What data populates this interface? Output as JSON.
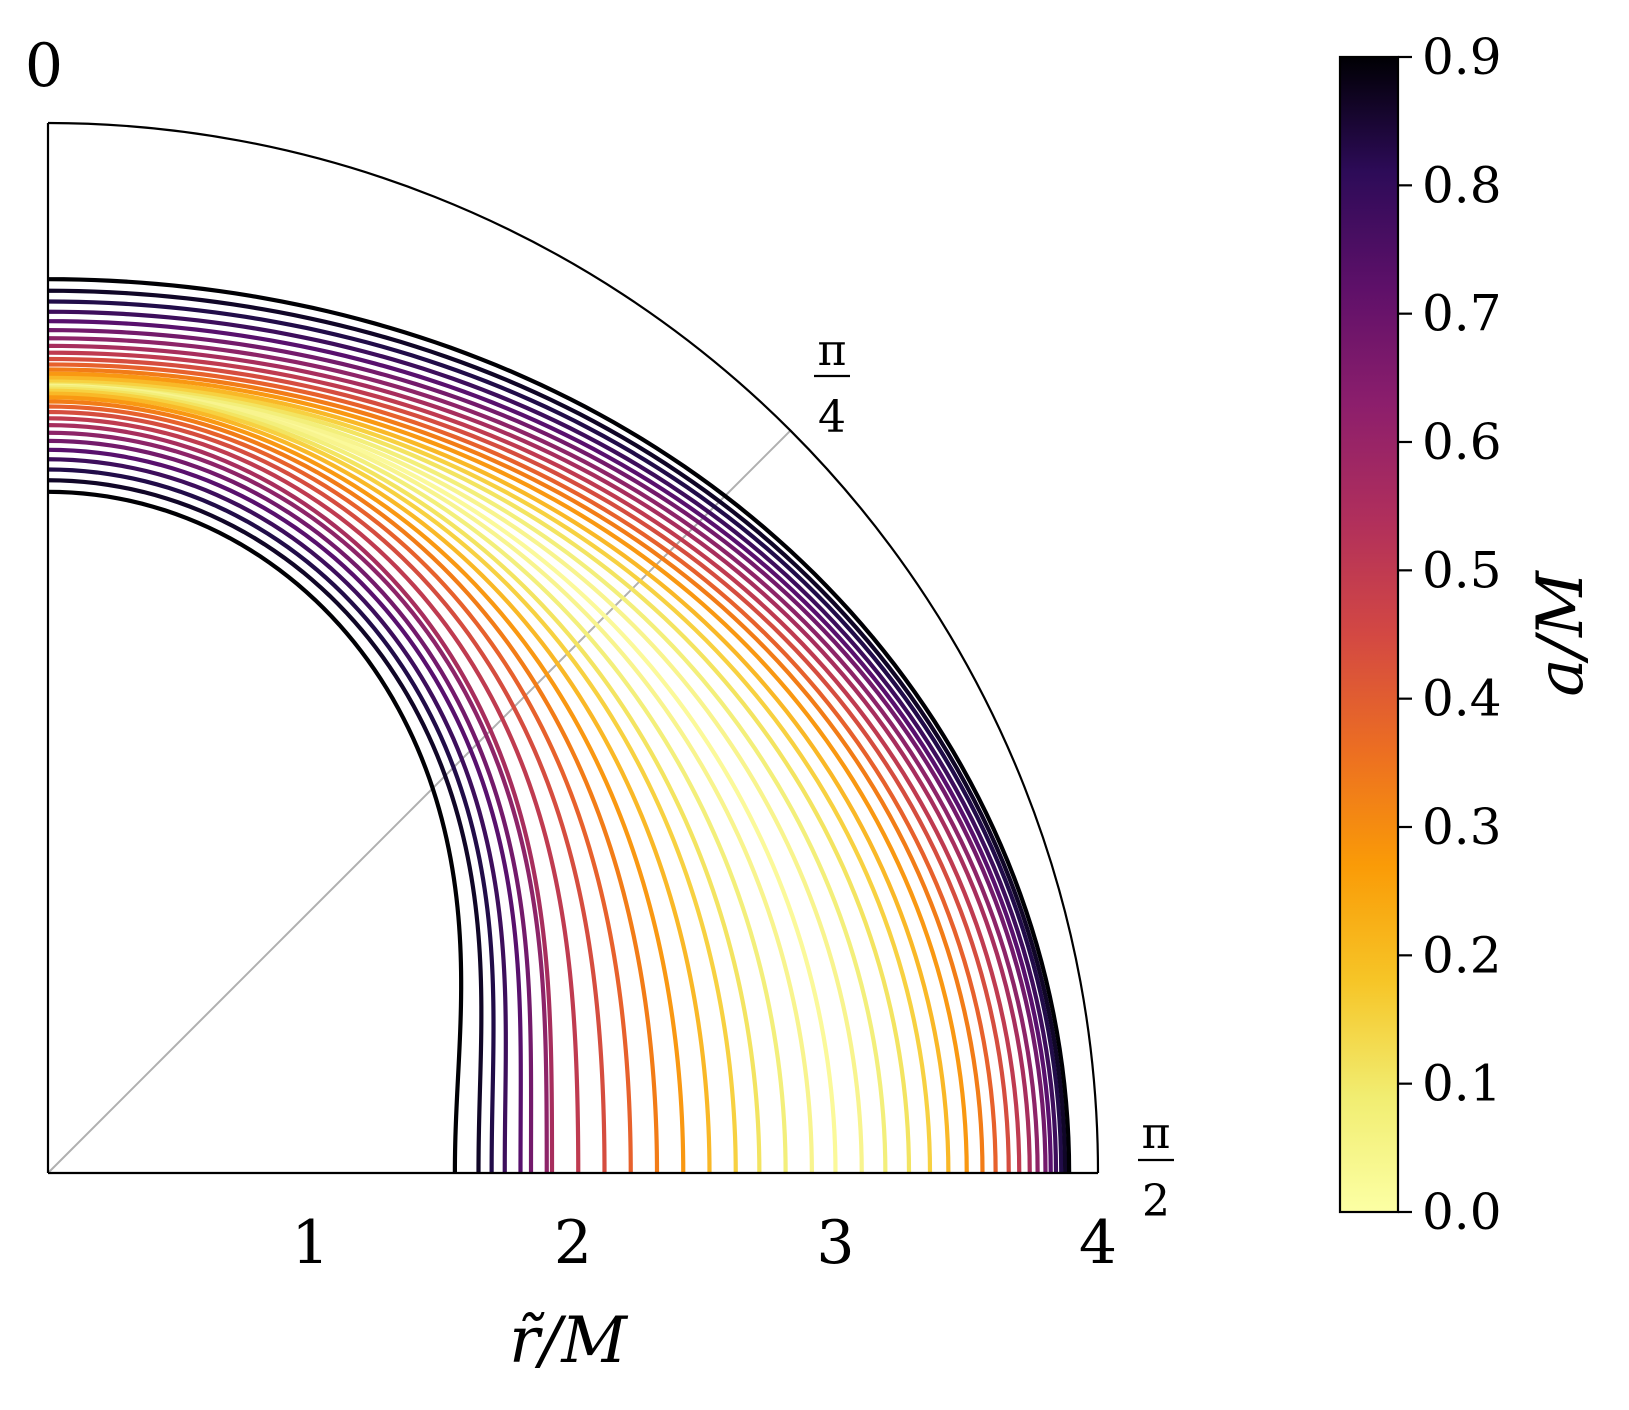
{
  "chart_data": {
    "type": "line",
    "projection": "polar-quadrant",
    "title": "",
    "xlabel": "r̃/M",
    "cbar_label": "a/M",
    "rlim": [
      0,
      4
    ],
    "thetalim": [
      0,
      1.5708
    ],
    "r_ticks": [
      "1",
      "2",
      "3",
      "4"
    ],
    "theta_ticks": [
      {
        "value": 0,
        "num": "0",
        "den": ""
      },
      {
        "value": 0.7854,
        "num": "π",
        "den": "4"
      },
      {
        "value": 1.5708,
        "num": "π",
        "den": "2"
      }
    ],
    "colorbar": {
      "range": [
        0,
        0.9
      ],
      "ticks": [
        "0.0",
        "0.1",
        "0.2",
        "0.3",
        "0.4",
        "0.5",
        "0.6",
        "0.7",
        "0.8",
        "0.9"
      ],
      "colormap": "inferno"
    },
    "series_outer": [
      {
        "a": 0.0,
        "r_pole": 3.0,
        "r_equator": 3.0
      },
      {
        "a": 0.05,
        "r_pole": 3.001,
        "r_equator": 3.1
      },
      {
        "a": 0.1,
        "r_pole": 3.005,
        "r_equator": 3.19
      },
      {
        "a": 0.15,
        "r_pole": 3.012,
        "r_equator": 3.28
      },
      {
        "a": 0.2,
        "r_pole": 3.02,
        "r_equator": 3.36
      },
      {
        "a": 0.25,
        "r_pole": 3.031,
        "r_equator": 3.43
      },
      {
        "a": 0.3,
        "r_pole": 3.045,
        "r_equator": 3.5
      },
      {
        "a": 0.35,
        "r_pole": 3.061,
        "r_equator": 3.56
      },
      {
        "a": 0.4,
        "r_pole": 3.08,
        "r_equator": 3.61
      },
      {
        "a": 0.45,
        "r_pole": 3.101,
        "r_equator": 3.66
      },
      {
        "a": 0.5,
        "r_pole": 3.125,
        "r_equator": 3.7
      },
      {
        "a": 0.55,
        "r_pole": 3.151,
        "r_equator": 3.74
      },
      {
        "a": 0.6,
        "r_pole": 3.18,
        "r_equator": 3.77
      },
      {
        "a": 0.65,
        "r_pole": 3.211,
        "r_equator": 3.8
      },
      {
        "a": 0.7,
        "r_pole": 3.245,
        "r_equator": 3.82
      },
      {
        "a": 0.75,
        "r_pole": 3.281,
        "r_equator": 3.84
      },
      {
        "a": 0.8,
        "r_pole": 3.32,
        "r_equator": 3.86
      },
      {
        "a": 0.85,
        "r_pole": 3.361,
        "r_equator": 3.875
      },
      {
        "a": 0.9,
        "r_pole": 3.405,
        "r_equator": 3.89
      }
    ],
    "series_inner": [
      {
        "a": 0.05,
        "r_pole": 2.999,
        "r_equator": 2.91
      },
      {
        "a": 0.1,
        "r_pole": 2.995,
        "r_equator": 2.81
      },
      {
        "a": 0.15,
        "r_pole": 2.988,
        "r_equator": 2.71
      },
      {
        "a": 0.2,
        "r_pole": 2.98,
        "r_equator": 2.62
      },
      {
        "a": 0.25,
        "r_pole": 2.969,
        "r_equator": 2.52
      },
      {
        "a": 0.3,
        "r_pole": 2.955,
        "r_equator": 2.42
      },
      {
        "a": 0.35,
        "r_pole": 2.939,
        "r_equator": 2.32
      },
      {
        "a": 0.4,
        "r_pole": 2.92,
        "r_equator": 2.22
      },
      {
        "a": 0.45,
        "r_pole": 2.899,
        "r_equator": 2.12
      },
      {
        "a": 0.5,
        "r_pole": 2.875,
        "r_equator": 2.02
      },
      {
        "a": 0.55,
        "r_pole": 2.849,
        "r_equator": 1.92
      },
      {
        "a": 0.6,
        "r_pole": 2.82,
        "r_equator": 1.9
      },
      {
        "a": 0.65,
        "r_pole": 2.789,
        "r_equator": 1.84
      },
      {
        "a": 0.7,
        "r_pole": 2.755,
        "r_equator": 1.8
      },
      {
        "a": 0.75,
        "r_pole": 2.719,
        "r_equator": 1.74
      },
      {
        "a": 0.8,
        "r_pole": 2.68,
        "r_equator": 1.69
      },
      {
        "a": 0.85,
        "r_pole": 2.639,
        "r_equator": 1.64
      },
      {
        "a": 0.9,
        "r_pole": 2.595,
        "r_equator": 1.55
      }
    ],
    "grid": "theta=π/4 only",
    "legend": "colorbar-right"
  }
}
